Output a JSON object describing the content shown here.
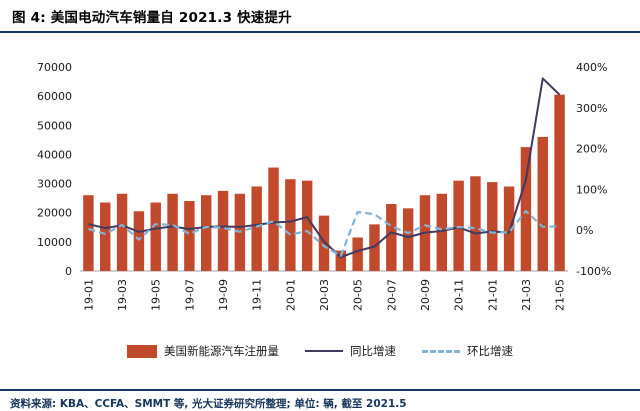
{
  "header": {
    "title": "图 4: 美国电动汽车销量自 2021.3 快速提升"
  },
  "footer": {
    "source": "资料来源: KBA、CCFA、SMMT 等,  光大证券研究所整理; 单位: 辆, 截至 2021.5"
  },
  "colors": {
    "rule": "#16365c",
    "footer_text": "#16365c",
    "bar": "#c1492c",
    "yoy_line": "#403a60",
    "mom_line": "#82b4d8",
    "axis_line": "#a6a6a6"
  },
  "chart_data": {
    "type": "bar",
    "subtype": "combo-bar-line",
    "title": "图 4: 美国电动汽车销量自 2021.3 快速提升",
    "grid": false,
    "legend_position": "bottom",
    "categories": [
      "19-01",
      "19-02",
      "19-03",
      "19-04",
      "19-05",
      "19-06",
      "19-07",
      "19-08",
      "19-09",
      "19-10",
      "19-11",
      "19-12",
      "20-01",
      "20-02",
      "20-03",
      "20-04",
      "20-05",
      "20-06",
      "20-07",
      "20-08",
      "20-09",
      "20-10",
      "20-11",
      "20-12",
      "21-01",
      "21-02",
      "21-03",
      "21-04",
      "21-05"
    ],
    "x_tick_labels": [
      "19-01",
      "19-03",
      "19-05",
      "19-07",
      "19-09",
      "19-11",
      "20-01",
      "20-03",
      "20-05",
      "20-07",
      "20-09",
      "20-11",
      "21-01",
      "21-03",
      "21-05"
    ],
    "left_axis": {
      "min": 0,
      "max": 70000,
      "ticks": [
        0,
        10000,
        20000,
        30000,
        40000,
        50000,
        60000,
        70000
      ]
    },
    "right_axis": {
      "min": -100,
      "max": 400,
      "ticks": [
        "-100%",
        "0%",
        "100%",
        "200%",
        "300%",
        "400%"
      ]
    },
    "series": [
      {
        "name": "美国新能源汽车注册量",
        "type": "bar",
        "axis": "left",
        "color": "#c1492c",
        "values": [
          26000,
          23500,
          26500,
          20500,
          23500,
          26500,
          24000,
          26000,
          27500,
          26500,
          29000,
          35500,
          31500,
          31000,
          19000,
          7000,
          11500,
          16000,
          23000,
          21500,
          26000,
          26500,
          31000,
          32500,
          30500,
          29000,
          42500,
          46000,
          60500
        ]
      },
      {
        "name": "同比增速",
        "type": "line",
        "style": "solid",
        "axis": "right",
        "color": "#403a60",
        "values": [
          15,
          5,
          12,
          -4,
          4,
          9,
          3,
          8,
          9,
          8,
          13,
          19,
          21,
          32,
          -28,
          -66,
          -51,
          -40,
          -5,
          -17,
          -6,
          -2,
          7,
          -8,
          -3,
          -6,
          124,
          372,
          332
        ]
      },
      {
        "name": "环比增速",
        "type": "line",
        "style": "dashed",
        "axis": "right",
        "color": "#82b4d8",
        "values": [
          3,
          -9,
          13,
          -23,
          15,
          13,
          -9,
          8,
          6,
          -4,
          9,
          22,
          -11,
          -2,
          -39,
          -63,
          45,
          39,
          10,
          -7,
          12,
          2,
          8,
          5,
          -6,
          -5,
          47,
          8,
          10
        ]
      }
    ]
  }
}
